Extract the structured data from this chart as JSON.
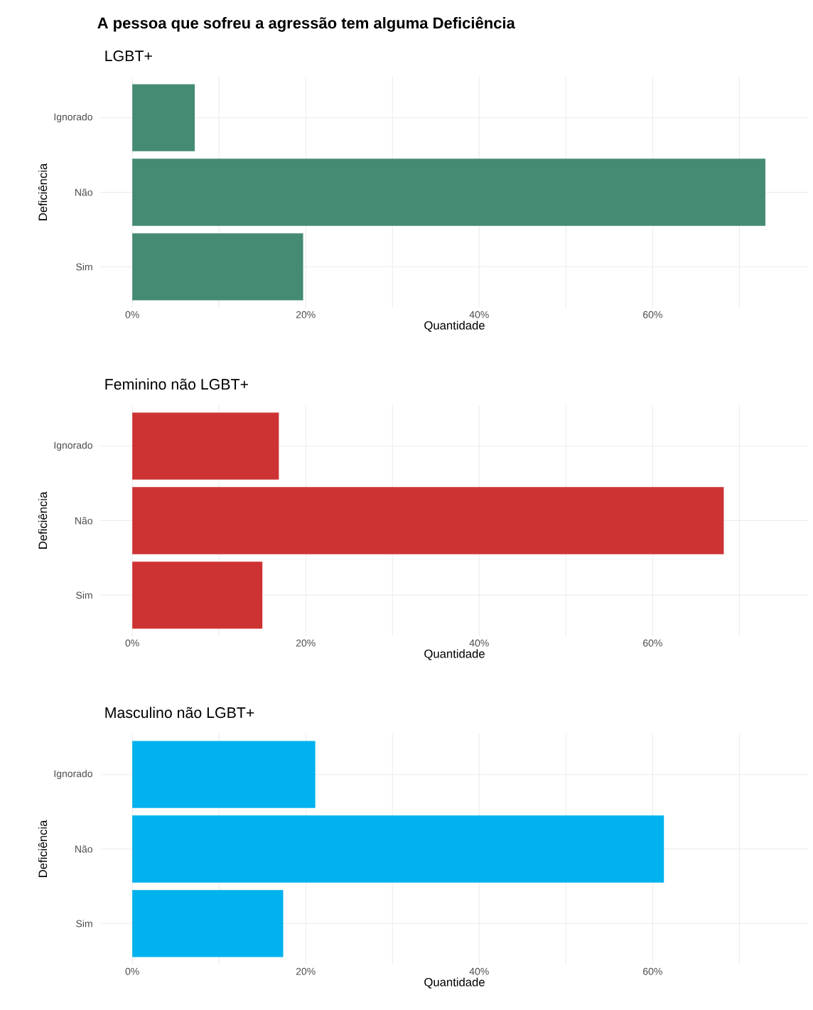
{
  "chart_data": [
    {
      "type": "bar",
      "orientation": "horizontal",
      "title": "A pessoa que sofreu a agressão tem alguma Deficiência",
      "subtitle": "LGBT+",
      "categories": [
        "Ignorado",
        "Não",
        "Sim"
      ],
      "values": [
        7.2,
        73.0,
        19.7
      ],
      "color": "#458b73",
      "xlim": [
        -3.7,
        78
      ],
      "xticks": [
        {
          "value": 0,
          "label": "0%"
        },
        {
          "value": 10,
          "label": null
        },
        {
          "value": 20,
          "label": "20%"
        },
        {
          "value": 30,
          "label": null
        },
        {
          "value": 40,
          "label": "40%"
        },
        {
          "value": 50,
          "label": null
        },
        {
          "value": 60,
          "label": "60%"
        },
        {
          "value": 70,
          "label": null
        }
      ],
      "xlabel": "Quantidade",
      "ylabel": "Deficiência",
      "grid": true
    },
    {
      "type": "bar",
      "orientation": "horizontal",
      "subtitle": "Feminino não LGBT+",
      "categories": [
        "Ignorado",
        "Não",
        "Sim"
      ],
      "values": [
        16.9,
        68.2,
        15.0
      ],
      "color": "#cd3333",
      "xlim": [
        -3.7,
        78
      ],
      "xticks": [
        {
          "value": 0,
          "label": "0%"
        },
        {
          "value": 10,
          "label": null
        },
        {
          "value": 20,
          "label": "20%"
        },
        {
          "value": 30,
          "label": null
        },
        {
          "value": 40,
          "label": "40%"
        },
        {
          "value": 50,
          "label": null
        },
        {
          "value": 60,
          "label": "60%"
        },
        {
          "value": 70,
          "label": null
        }
      ],
      "xlabel": "Quantidade",
      "ylabel": "Deficiência",
      "grid": true
    },
    {
      "type": "bar",
      "orientation": "horizontal",
      "subtitle": "Masculino não LGBT+",
      "categories": [
        "Ignorado",
        "Não",
        "Sim"
      ],
      "values": [
        21.1,
        61.3,
        17.4
      ],
      "color": "#00b2ee",
      "xlim": [
        -3.7,
        78
      ],
      "xticks": [
        {
          "value": 0,
          "label": "0%"
        },
        {
          "value": 10,
          "label": null
        },
        {
          "value": 20,
          "label": "20%"
        },
        {
          "value": 30,
          "label": null
        },
        {
          "value": 40,
          "label": "40%"
        },
        {
          "value": 50,
          "label": null
        },
        {
          "value": 60,
          "label": "60%"
        },
        {
          "value": 70,
          "label": null
        }
      ],
      "xlabel": "Quantidade",
      "ylabel": "Deficiência",
      "grid": true
    }
  ]
}
